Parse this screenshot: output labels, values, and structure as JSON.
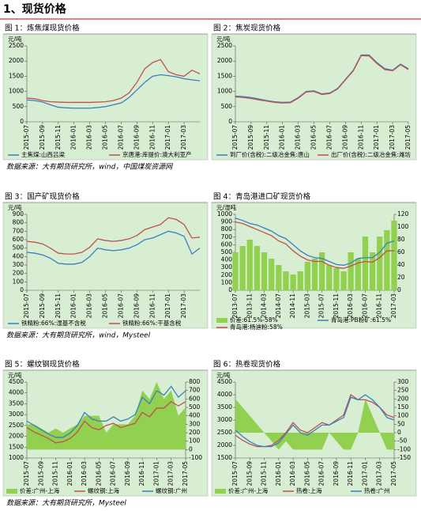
{
  "header": {
    "title": "1、现货价格"
  },
  "sources": [
    "数据来源：大有期货研究所，wind，中国煤炭资源网",
    "数据来源：大有期货研究所，wind，Mysteel",
    "数据来源：大有期货研究所，Mysteel"
  ],
  "chart_data": [
    {
      "type": "line",
      "title": "图 1：炼焦煤现货价格",
      "y_unit": "元/吨",
      "categories": [
        "2015-07",
        null,
        "2015-09",
        null,
        "2015-11",
        null,
        "2016-01",
        null,
        "2016-03",
        null,
        "2016-05",
        null,
        "2016-07",
        null,
        "2016-09",
        null,
        "2016-11",
        null,
        "2017-01",
        null,
        "2017-03",
        null,
        null
      ],
      "ylim": [
        0,
        2500
      ],
      "yticks": [
        0,
        500,
        1000,
        1500,
        2000,
        2500
      ],
      "series": [
        {
          "name": "主焦煤:山西吕梁",
          "color": "#3a7fc1",
          "type": "line",
          "values": [
            720,
            700,
            650,
            560,
            480,
            460,
            450,
            450,
            450,
            470,
            500,
            560,
            620,
            800,
            1050,
            1300,
            1500,
            1550,
            1520,
            1480,
            1420,
            1380,
            1350
          ]
        },
        {
          "name": "京唐港:库提价:澳大利亚产",
          "color": "#c0504d",
          "type": "line",
          "values": [
            780,
            760,
            700,
            660,
            650,
            640,
            640,
            640,
            640,
            650,
            660,
            700,
            780,
            950,
            1300,
            1750,
            1950,
            2050,
            1650,
            1550,
            1500,
            1700,
            1580
          ]
        }
      ]
    },
    {
      "type": "line",
      "title": "图 2：焦炭现货价格",
      "y_unit": "元/吨",
      "categories": [
        "2015-07",
        null,
        "2015-09",
        null,
        "2015-11",
        null,
        "2016-01",
        null,
        "2016-03",
        null,
        "2016-05",
        null,
        "2016-07",
        null,
        "2016-09",
        null,
        "2016-11",
        null,
        "2017-01",
        null,
        "2017-03",
        null,
        "2017-05"
      ],
      "ylim": [
        0,
        2500
      ],
      "yticks": [
        0,
        500,
        1000,
        1500,
        2000,
        2500
      ],
      "series": [
        {
          "name": "到厂价(含税):二级冶金焦:唐山",
          "color": "#3a7fc1",
          "type": "line",
          "values": [
            850,
            830,
            800,
            750,
            700,
            660,
            640,
            650,
            800,
            1000,
            1020,
            920,
            950,
            1100,
            1400,
            1700,
            2200,
            2200,
            1950,
            1750,
            1700,
            1900,
            1750
          ]
        },
        {
          "name": "出厂价(含税):二级冶金焦:潍坊",
          "color": "#c0504d",
          "type": "line",
          "values": [
            820,
            800,
            770,
            720,
            680,
            640,
            620,
            630,
            780,
            980,
            1000,
            900,
            930,
            1080,
            1380,
            1680,
            2180,
            2170,
            1920,
            1720,
            1680,
            1880,
            1720
          ]
        }
      ]
    },
    {
      "type": "line",
      "title": "图 3：国产矿现货价格",
      "y_unit": "元/吨",
      "categories": [
        "2015-07",
        null,
        "2015-09",
        null,
        "2015-11",
        null,
        "2016-01",
        null,
        "2016-03",
        null,
        "2016-05",
        null,
        "2016-07",
        null,
        "2016-09",
        null,
        "2016-11",
        null,
        "2017-01",
        null,
        "2017-03",
        null,
        null
      ],
      "ylim": [
        0,
        900
      ],
      "yticks": [
        0,
        100,
        200,
        300,
        400,
        500,
        600,
        700,
        800,
        900
      ],
      "series": [
        {
          "name": "铁精粉:66%:湿基不含税",
          "color": "#3a7fc1",
          "type": "line",
          "values": [
            450,
            440,
            420,
            380,
            320,
            310,
            310,
            330,
            400,
            500,
            480,
            470,
            480,
            500,
            540,
            600,
            620,
            660,
            700,
            680,
            640,
            430,
            500
          ]
        },
        {
          "name": "铁精粉:66%:干基含税",
          "color": "#c0504d",
          "type": "line",
          "values": [
            580,
            570,
            550,
            500,
            440,
            430,
            430,
            450,
            510,
            610,
            590,
            580,
            590,
            610,
            650,
            720,
            750,
            780,
            860,
            840,
            780,
            620,
            630
          ]
        }
      ]
    },
    {
      "type": "line",
      "title": "图 4：青岛港进口矿现货价格",
      "y_unit": "元/湿吨",
      "categories": [
        "2013-07",
        null,
        "2013-11",
        null,
        "2014-03",
        null,
        "2014-07",
        null,
        "2014-11",
        null,
        "2015-03",
        null,
        "2015-07",
        null,
        "2015-11",
        null,
        "2016-03",
        null,
        "2016-07",
        null,
        "2016-11",
        null,
        "2017-03"
      ],
      "ylim": [
        0,
        1000
      ],
      "yticks": [
        0,
        100,
        200,
        300,
        400,
        500,
        600,
        700,
        800,
        900,
        1000
      ],
      "y2lim": [
        0,
        120
      ],
      "y2ticks": [
        0,
        20,
        40,
        60,
        80,
        100,
        120
      ],
      "series": [
        {
          "name": "价差:61.5%-58%",
          "color": "#92d050",
          "type": "bar",
          "axis": "y2",
          "values": [
            60,
            70,
            80,
            70,
            60,
            50,
            40,
            30,
            25,
            30,
            45,
            50,
            60,
            40,
            35,
            30,
            60,
            50,
            85,
            60,
            85,
            95,
            110
          ]
        },
        {
          "name": "青岛港:PB粉矿:61.5%",
          "color": "#3a7fc1",
          "type": "line",
          "values": [
            950,
            920,
            880,
            860,
            820,
            780,
            720,
            680,
            600,
            520,
            460,
            430,
            420,
            380,
            340,
            330,
            360,
            420,
            430,
            430,
            500,
            620,
            650
          ]
        },
        {
          "name": "青岛港:杨迪粉:58%",
          "color": "#c0504d",
          "type": "line",
          "values": [
            900,
            880,
            840,
            800,
            760,
            720,
            650,
            610,
            520,
            450,
            400,
            380,
            380,
            330,
            300,
            290,
            320,
            360,
            380,
            370,
            430,
            520,
            520
          ]
        }
      ]
    },
    {
      "type": "line",
      "title": "图 5：螺纹钢现货价格",
      "y_unit": "元/吨",
      "categories": [
        "2015-07",
        null,
        "2015-09",
        null,
        "2015-11",
        null,
        "2016-01",
        null,
        "2016-03",
        null,
        "2016-05",
        null,
        "2016-07",
        null,
        "2016-09",
        null,
        "2016-11",
        null,
        "2017-01",
        null,
        "2017-03",
        null,
        "2017-05"
      ],
      "ylim": [
        1000,
        4500
      ],
      "yticks": [
        1000,
        1500,
        2000,
        2500,
        3000,
        3500,
        4000,
        4500
      ],
      "y2lim": [
        -100,
        800
      ],
      "y2ticks": [
        -100,
        0,
        100,
        200,
        300,
        400,
        500,
        600,
        700,
        800
      ],
      "series": [
        {
          "name": "价差:广州-上海",
          "color": "#92d050",
          "type": "area",
          "axis": "y2",
          "values": [
            300,
            300,
            250,
            200,
            250,
            200,
            250,
            300,
            400,
            400,
            400,
            200,
            300,
            300,
            300,
            400,
            700,
            600,
            800,
            600,
            700,
            400,
            500
          ]
        },
        {
          "name": "螺纹钢:上海",
          "color": "#c0504d",
          "type": "line",
          "values": [
            2400,
            2200,
            2050,
            1900,
            1700,
            1750,
            1900,
            2200,
            2700,
            2400,
            2300,
            2500,
            2600,
            2400,
            2500,
            2600,
            3100,
            2900,
            3300,
            3300,
            3600,
            3400,
            3600
          ]
        },
        {
          "name": "螺纹钢:广州",
          "color": "#3a7fc1",
          "type": "line",
          "values": [
            2700,
            2500,
            2300,
            2100,
            1950,
            1950,
            2150,
            2500,
            3100,
            2800,
            2700,
            2700,
            2900,
            2700,
            2800,
            3000,
            3800,
            3500,
            4100,
            3900,
            4300,
            3800,
            4100
          ]
        }
      ]
    },
    {
      "type": "line",
      "title": "图 6：热卷现货价格",
      "y_unit": "元/吨",
      "categories": [
        "2015-07",
        null,
        "2015-09",
        null,
        "2015-11",
        null,
        "2016-01",
        null,
        "2016-03",
        null,
        "2016-05",
        null,
        "2016-07",
        null,
        "2016-09",
        null,
        "2016-11",
        null,
        "2017-01",
        null,
        "2017-03",
        null,
        "2017-05"
      ],
      "ylim": [
        1500,
        4500
      ],
      "yticks": [
        1500,
        2000,
        2500,
        3000,
        3500,
        4000,
        4500
      ],
      "y2lim": [
        -150,
        300
      ],
      "y2ticks": [
        -150,
        -100,
        -50,
        0,
        50,
        100,
        150,
        200,
        250,
        300
      ],
      "series": [
        {
          "name": "价差:广州-上海",
          "color": "#92d050",
          "type": "area",
          "axis": "y2",
          "values": [
            200,
            150,
            100,
            50,
            0,
            -50,
            -100,
            -50,
            -100,
            -100,
            -100,
            -100,
            -100,
            0,
            -50,
            -100,
            -100,
            0,
            200,
            100,
            0,
            -100,
            -100
          ]
        },
        {
          "name": "热卷:上海",
          "color": "#c0504d",
          "type": "line",
          "values": [
            2400,
            2200,
            2050,
            1950,
            1950,
            2000,
            2200,
            2500,
            2900,
            2600,
            2500,
            2700,
            2900,
            2800,
            3000,
            3200,
            4000,
            3800,
            3800,
            3700,
            3500,
            3200,
            3100
          ]
        },
        {
          "name": "热卷:广州",
          "color": "#3a7fc1",
          "type": "line",
          "values": [
            2600,
            2350,
            2150,
            2000,
            1950,
            1950,
            2100,
            2450,
            2800,
            2500,
            2400,
            2600,
            2800,
            2800,
            2950,
            3100,
            3900,
            3800,
            4000,
            3800,
            3500,
            3100,
            3000
          ]
        }
      ]
    }
  ]
}
